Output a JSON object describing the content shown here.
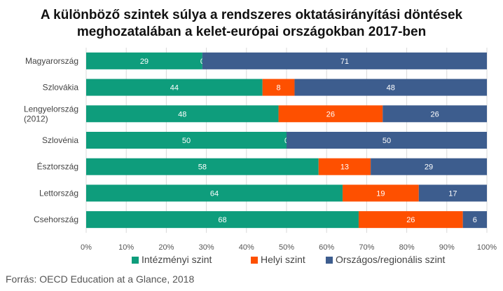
{
  "chart_data": {
    "type": "bar",
    "orientation": "horizontal",
    "stacked": true,
    "title": [
      "A különböző szintek súlya a rendszeres oktatásirányítási döntések",
      "meghozatalában a kelet-európai országokban 2017-ben"
    ],
    "categories": [
      [
        "Magyarország"
      ],
      [
        "Szlovákia"
      ],
      [
        "Lengyelország",
        "(2012)"
      ],
      [
        "Szlovénia"
      ],
      [
        "Észtország"
      ],
      [
        "Lettország"
      ],
      [
        "Csehország"
      ]
    ],
    "series": [
      {
        "name": "Intézményi szint",
        "color": "#0e9d7c",
        "values": [
          29,
          44,
          48,
          50,
          58,
          64,
          68
        ]
      },
      {
        "name": "Helyi szint",
        "color": "#fe5000",
        "values": [
          0,
          8,
          26,
          0,
          13,
          19,
          26
        ]
      },
      {
        "name": "Országos/regionális szint",
        "color": "#3d5d8e",
        "values": [
          71,
          48,
          26,
          50,
          29,
          17,
          6
        ]
      }
    ],
    "x_ticks": [
      "0%",
      "10%",
      "20%",
      "30%",
      "40%",
      "50%",
      "60%",
      "70%",
      "80%",
      "90%",
      "100%"
    ],
    "xlim": [
      0,
      100
    ],
    "legend_position": "bottom",
    "grid": true
  },
  "source": "Forrás: OECD Education at a Glance, 2018"
}
